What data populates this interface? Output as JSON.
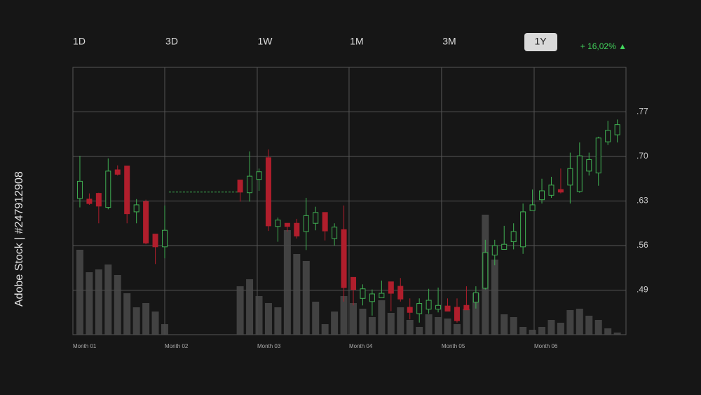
{
  "timeframes": {
    "options": [
      "1D",
      "3D",
      "1W",
      "1M",
      "3M",
      "1Y"
    ],
    "selected_index": 5
  },
  "change": "+ 16,02% ▲",
  "watermark_id": "Adobe Stock | #247912908",
  "chart_data": {
    "type": "candlestick",
    "x": [
      0,
      1,
      2,
      3,
      4,
      5,
      6,
      7,
      8,
      9,
      17,
      18,
      19,
      20,
      21,
      22,
      23,
      24,
      25,
      26,
      27,
      28,
      29,
      30,
      31,
      32,
      33,
      34,
      35,
      36,
      37,
      38,
      39,
      40,
      41,
      42,
      43,
      44,
      45,
      46,
      47,
      48,
      49,
      50,
      51,
      52,
      53,
      54,
      55,
      56,
      57
    ],
    "open": [
      0.634,
      0.633,
      0.642,
      0.62,
      0.679,
      0.685,
      0.613,
      0.629,
      0.578,
      0.558,
      0.663,
      0.643,
      0.664,
      0.698,
      0.59,
      0.595,
      0.595,
      0.582,
      0.595,
      0.612,
      0.571,
      0.585,
      0.51,
      0.477,
      0.472,
      0.478,
      0.503,
      0.496,
      0.463,
      0.453,
      0.46,
      0.46,
      0.465,
      0.463,
      0.466,
      0.471,
      0.493,
      0.545,
      0.554,
      0.566,
      0.558,
      0.615,
      0.632,
      0.639,
      0.648,
      0.655,
      0.645,
      0.677,
      0.674,
      0.723,
      0.734
    ],
    "high": [
      0.701,
      0.642,
      0.643,
      0.697,
      0.686,
      0.685,
      0.633,
      0.632,
      0.578,
      0.623,
      0.663,
      0.708,
      0.681,
      0.711,
      0.604,
      0.595,
      0.602,
      0.635,
      0.621,
      0.612,
      0.595,
      0.623,
      0.51,
      0.499,
      0.491,
      0.505,
      0.503,
      0.509,
      0.477,
      0.477,
      0.492,
      0.494,
      0.477,
      0.477,
      0.496,
      0.496,
      0.569,
      0.569,
      0.591,
      0.595,
      0.626,
      0.648,
      0.665,
      0.668,
      0.681,
      0.706,
      0.722,
      0.706,
      0.731,
      0.756,
      0.758
    ],
    "low": [
      0.62,
      0.624,
      0.595,
      0.617,
      0.67,
      0.595,
      0.595,
      0.562,
      0.531,
      0.54,
      0.629,
      0.629,
      0.646,
      0.583,
      0.566,
      0.582,
      0.571,
      0.553,
      0.584,
      0.568,
      0.56,
      0.472,
      0.466,
      0.466,
      0.45,
      0.478,
      0.457,
      0.472,
      0.444,
      0.439,
      0.453,
      0.455,
      0.457,
      0.439,
      0.459,
      0.461,
      0.491,
      0.529,
      0.554,
      0.554,
      0.547,
      0.615,
      0.626,
      0.635,
      0.642,
      0.626,
      0.643,
      0.67,
      0.654,
      0.718,
      0.722
    ],
    "close": [
      0.661,
      0.626,
      0.622,
      0.677,
      0.672,
      0.61,
      0.624,
      0.564,
      0.558,
      0.584,
      0.644,
      0.669,
      0.676,
      0.591,
      0.6,
      0.59,
      0.575,
      0.607,
      0.612,
      0.583,
      0.589,
      0.494,
      0.491,
      0.492,
      0.484,
      0.485,
      0.485,
      0.476,
      0.455,
      0.469,
      0.474,
      0.466,
      0.457,
      0.442,
      0.459,
      0.486,
      0.549,
      0.56,
      0.562,
      0.582,
      0.613,
      0.624,
      0.646,
      0.655,
      0.644,
      0.681,
      0.701,
      0.695,
      0.729,
      0.741,
      0.75
    ],
    "volume": [
      121,
      89,
      93,
      100,
      85,
      59,
      39,
      45,
      33,
      15,
      69,
      79,
      55,
      45,
      39,
      149,
      115,
      105,
      47,
      15,
      33,
      55,
      45,
      37,
      25,
      49,
      31,
      39,
      21,
      11,
      29,
      25,
      23,
      15,
      37,
      59,
      171,
      107,
      29,
      25,
      11,
      7,
      11,
      21,
      17,
      35,
      37,
      27,
      21,
      9,
      3
    ],
    "volume_lim": [
      0,
      381
    ],
    "up_color": "#3fae52",
    "down_color": "#b01e2c",
    "volume_color": "#4a4a4a",
    "reference_line": {
      "y": 0.644,
      "x": [
        9.44,
        16.8
      ],
      "color": "#3fae52"
    },
    "xlim": [
      -0.74,
      57.92
    ],
    "xticks": [
      {
        "value": -0.74,
        "label": "Month 01"
      },
      {
        "value": 9.0,
        "label": "Month 02"
      },
      {
        "value": 18.81,
        "label": "Month 03"
      },
      {
        "value": 28.55,
        "label": "Month 04"
      },
      {
        "value": 38.36,
        "label": "Month 05"
      },
      {
        "value": 48.18,
        "label": "Month 06"
      }
    ],
    "ylim": [
      0.42,
      0.84
    ],
    "yticks": [
      {
        "value": 0.49,
        "label": ".49"
      },
      {
        "value": 0.56,
        "label": ".56"
      },
      {
        "value": 0.63,
        "label": ".63"
      },
      {
        "value": 0.7,
        "label": ".70"
      },
      {
        "value": 0.77,
        "label": ".77"
      }
    ],
    "grid": true
  }
}
